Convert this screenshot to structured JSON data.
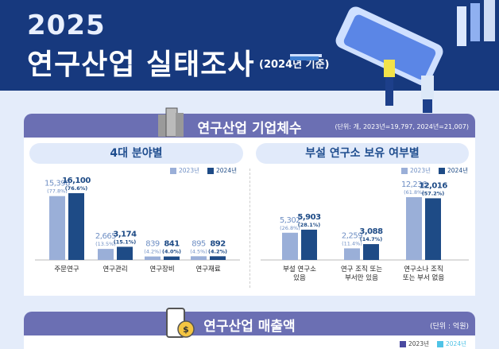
{
  "header": {
    "year": "2025",
    "title": "연구산업 실태조사",
    "subtitle": "(2024년 기준)"
  },
  "section1": {
    "title": "연구산업 기업체수",
    "unit": "(단위: 개, 2023년=19,797, 2024년=21,007)"
  },
  "section2": {
    "title": "연구산업 매출액",
    "unit": "(단위 : 억원)",
    "legend": [
      "2023년",
      "2024년"
    ]
  },
  "colors": {
    "y2023": "#9aafd8",
    "y2024": "#1e4b86",
    "label2023": "#6f8fc4",
    "section_bar": "#6b6fb3",
    "s2_2023": "#4a4aa0",
    "s2_2024": "#4fc3e6"
  },
  "chart_data": [
    {
      "type": "bar",
      "title": "4대 분야별",
      "legend_position": "top-right",
      "categories": [
        "주문연구",
        "연구관리",
        "연구장비",
        "연구재료"
      ],
      "series": [
        {
          "name": "2023년",
          "values": [
            15398,
            2665,
            839,
            895
          ],
          "shares": [
            "(77.8%)",
            "(13.5%)",
            "(4.2%)",
            "(4.5%)"
          ]
        },
        {
          "name": "2024년",
          "values": [
            16100,
            3174,
            841,
            892
          ],
          "shares": [
            "(76.6%)",
            "(15.1%)",
            "(4.0%)",
            "(4.2%)"
          ]
        }
      ]
    },
    {
      "type": "bar",
      "title": "부설 연구소 보유 여부별",
      "legend_position": "top-right",
      "categories": [
        "부설 연구소|있음",
        "연구 조직 또는|부서만 있음",
        "연구소나 조직|또는 부서 없음"
      ],
      "series": [
        {
          "name": "2023년",
          "values": [
            5302,
            2259,
            12236
          ],
          "shares": [
            "(26.8%)",
            "(11.4%)",
            "(61.8%)"
          ]
        },
        {
          "name": "2024년",
          "values": [
            5903,
            3088,
            12016
          ],
          "shares": [
            "(28.1%)",
            "(14.7%)",
            "(57.2%)"
          ]
        }
      ]
    }
  ]
}
